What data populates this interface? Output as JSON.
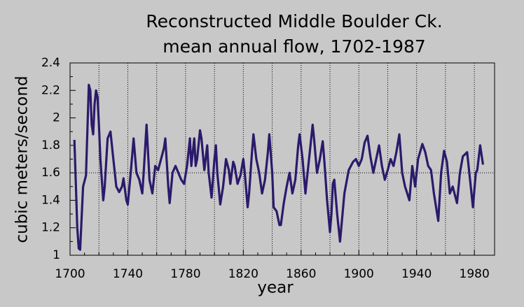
{
  "chart_data": {
    "type": "line",
    "title": [
      "Reconstructed Middle Boulder Ck.",
      "mean annual flow, 1702-1987"
    ],
    "xlabel": "year",
    "ylabel": "cubic meters/second",
    "xlim": [
      1700,
      1994
    ],
    "ylim": [
      1,
      2.4
    ],
    "xticks": [
      1700,
      1740,
      1780,
      1820,
      1860,
      1900,
      1940,
      1980
    ],
    "xgrid": [
      1720,
      1740,
      1760,
      1780,
      1800,
      1820,
      1840,
      1860,
      1880,
      1900,
      1920,
      1940,
      1960,
      1980
    ],
    "yticks": [
      1,
      1.2,
      1.4,
      1.6,
      1.8,
      2,
      2.2,
      2.4
    ],
    "reference_line": 1.6,
    "color": "#2b1a6b",
    "x": [
      1703,
      1705,
      1706,
      1707,
      1709,
      1711,
      1712,
      1713,
      1714,
      1715,
      1716,
      1717,
      1718,
      1719,
      1720,
      1721,
      1723,
      1724,
      1726,
      1728,
      1730,
      1732,
      1734,
      1736,
      1737,
      1739,
      1740,
      1742,
      1744,
      1746,
      1748,
      1750,
      1751,
      1753,
      1755,
      1757,
      1759,
      1761,
      1763,
      1765,
      1766,
      1768,
      1769,
      1771,
      1773,
      1775,
      1777,
      1779,
      1781,
      1783,
      1784,
      1786,
      1787,
      1788,
      1790,
      1791,
      1793,
      1795,
      1796,
      1798,
      1800,
      1801,
      1802,
      1804,
      1806,
      1808,
      1810,
      1811,
      1813,
      1814,
      1816,
      1818,
      1820,
      1821,
      1823,
      1824,
      1826,
      1827,
      1829,
      1831,
      1833,
      1835,
      1837,
      1838,
      1840,
      1841,
      1843,
      1845,
      1846,
      1848,
      1850,
      1852,
      1854,
      1856,
      1858,
      1859,
      1861,
      1863,
      1864,
      1866,
      1868,
      1869,
      1871,
      1873,
      1875,
      1876,
      1878,
      1880,
      1881,
      1882,
      1883,
      1885,
      1887,
      1890,
      1893,
      1896,
      1898,
      1900,
      1902,
      1904,
      1906,
      1908,
      1910,
      1912,
      1914,
      1916,
      1918,
      1920,
      1922,
      1924,
      1926,
      1928,
      1930,
      1932,
      1935,
      1937,
      1939,
      1941,
      1944,
      1946,
      1948,
      1950,
      1952,
      1955,
      1957,
      1959,
      1961,
      1963,
      1965,
      1968,
      1970,
      1972,
      1975,
      1977,
      1979,
      1981,
      1982,
      1984,
      1986
    ],
    "values": [
      1.84,
      1.2,
      1.05,
      1.04,
      1.5,
      1.58,
      1.9,
      2.24,
      2.2,
      1.95,
      1.88,
      2.1,
      2.2,
      2.15,
      1.95,
      1.7,
      1.4,
      1.5,
      1.85,
      1.9,
      1.7,
      1.5,
      1.46,
      1.5,
      1.56,
      1.4,
      1.37,
      1.6,
      1.85,
      1.6,
      1.55,
      1.45,
      1.6,
      1.95,
      1.55,
      1.45,
      1.65,
      1.62,
      1.7,
      1.78,
      1.85,
      1.5,
      1.38,
      1.6,
      1.65,
      1.6,
      1.55,
      1.52,
      1.65,
      1.85,
      1.65,
      1.85,
      1.65,
      1.7,
      1.91,
      1.85,
      1.62,
      1.8,
      1.6,
      1.42,
      1.7,
      1.8,
      1.6,
      1.37,
      1.5,
      1.7,
      1.62,
      1.52,
      1.68,
      1.65,
      1.52,
      1.58,
      1.7,
      1.6,
      1.35,
      1.45,
      1.75,
      1.88,
      1.7,
      1.6,
      1.45,
      1.55,
      1.75,
      1.88,
      1.6,
      1.35,
      1.32,
      1.22,
      1.22,
      1.38,
      1.5,
      1.6,
      1.45,
      1.55,
      1.8,
      1.88,
      1.7,
      1.45,
      1.55,
      1.75,
      1.95,
      1.85,
      1.6,
      1.7,
      1.83,
      1.7,
      1.4,
      1.17,
      1.3,
      1.52,
      1.55,
      1.3,
      1.1,
      1.45,
      1.62,
      1.68,
      1.7,
      1.65,
      1.7,
      1.82,
      1.87,
      1.72,
      1.6,
      1.7,
      1.8,
      1.65,
      1.55,
      1.62,
      1.7,
      1.65,
      1.75,
      1.88,
      1.6,
      1.5,
      1.4,
      1.65,
      1.5,
      1.7,
      1.81,
      1.75,
      1.65,
      1.62,
      1.45,
      1.25,
      1.6,
      1.76,
      1.68,
      1.45,
      1.5,
      1.38,
      1.6,
      1.72,
      1.75,
      1.55,
      1.35,
      1.6,
      1.62,
      1.8,
      1.66
    ]
  }
}
